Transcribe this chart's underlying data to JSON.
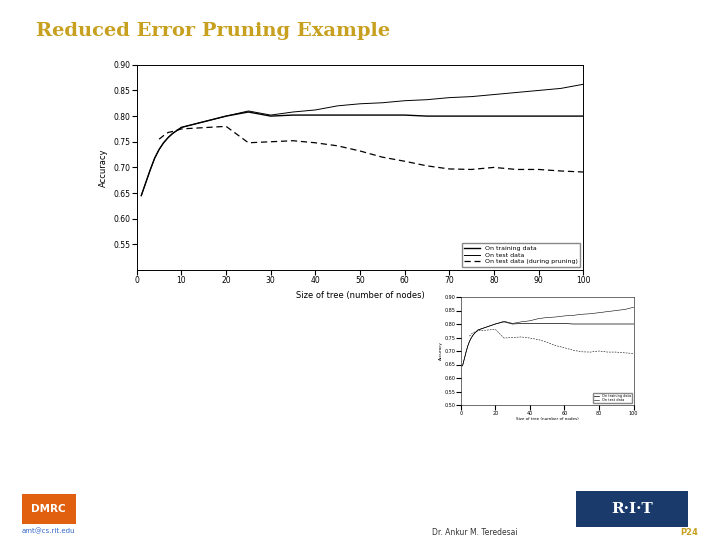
{
  "title": "Reduced Error Pruning Example",
  "title_color": "#c8a020",
  "title_fontsize": 14,
  "bg_color": "#ffffff",
  "main_chart": {
    "xlabel": "Size of tree (number of nodes)",
    "ylabel": "Accuracy",
    "xlim": [
      0,
      100
    ],
    "ylim": [
      0.5,
      0.9
    ],
    "yticks": [
      0.55,
      0.6,
      0.65,
      0.7,
      0.75,
      0.8,
      0.85,
      0.9
    ],
    "xticks": [
      0,
      10,
      20,
      30,
      40,
      50,
      60,
      70,
      80,
      90,
      100
    ],
    "legend_labels": [
      "On training data",
      "On test data",
      "On test data (during pruning)"
    ],
    "training_x": [
      1,
      2,
      3,
      4,
      5,
      6,
      7,
      8,
      10,
      20,
      25,
      30,
      35,
      40,
      45,
      50,
      55,
      60,
      65,
      70,
      75,
      80,
      85,
      90,
      95,
      100
    ],
    "training_y": [
      0.645,
      0.67,
      0.695,
      0.718,
      0.735,
      0.748,
      0.758,
      0.766,
      0.778,
      0.8,
      0.808,
      0.8,
      0.802,
      0.802,
      0.802,
      0.802,
      0.802,
      0.802,
      0.8,
      0.8,
      0.8,
      0.8,
      0.8,
      0.8,
      0.8,
      0.8
    ],
    "test_x": [
      1,
      2,
      3,
      4,
      5,
      6,
      7,
      8,
      10,
      20,
      25,
      30,
      35,
      40,
      45,
      50,
      55,
      60,
      65,
      70,
      75,
      80,
      85,
      90,
      95,
      100
    ],
    "test_y": [
      0.645,
      0.67,
      0.695,
      0.718,
      0.735,
      0.748,
      0.758,
      0.766,
      0.778,
      0.8,
      0.81,
      0.802,
      0.808,
      0.812,
      0.82,
      0.824,
      0.826,
      0.83,
      0.832,
      0.836,
      0.838,
      0.842,
      0.846,
      0.85,
      0.854,
      0.862
    ],
    "pruned_x": [
      5,
      6,
      7,
      8,
      10,
      20,
      25,
      30,
      35,
      40,
      45,
      50,
      55,
      60,
      65,
      70,
      75,
      80,
      85,
      90,
      95,
      100
    ],
    "pruned_y": [
      0.755,
      0.762,
      0.768,
      0.77,
      0.775,
      0.78,
      0.748,
      0.75,
      0.752,
      0.748,
      0.742,
      0.732,
      0.72,
      0.712,
      0.703,
      0.697,
      0.696,
      0.7,
      0.696,
      0.696,
      0.693,
      0.691
    ]
  },
  "thumb_chart": {
    "xlabel": "Size of tree (number of nodes)",
    "ylabel": "Accuracy",
    "xlim": [
      0,
      100
    ],
    "ylim": [
      0.5,
      0.9
    ],
    "legend_labels": [
      "On training data",
      "On test data"
    ]
  },
  "footer": {
    "dmrc_text": "DMRC",
    "dmrc_bg": "#e06010",
    "dmrc_fg": "#ffffff",
    "email": "amt@cs.rit.edu",
    "email_color": "#3366cc",
    "author": "Dr. Ankur M. Teredesai",
    "author_color": "#333333",
    "page": "P24",
    "page_color": "#c8a020",
    "rit_bg": "#1a3a6b",
    "rit_fg": "#ffffff",
    "rit_text": "R·I·T"
  }
}
